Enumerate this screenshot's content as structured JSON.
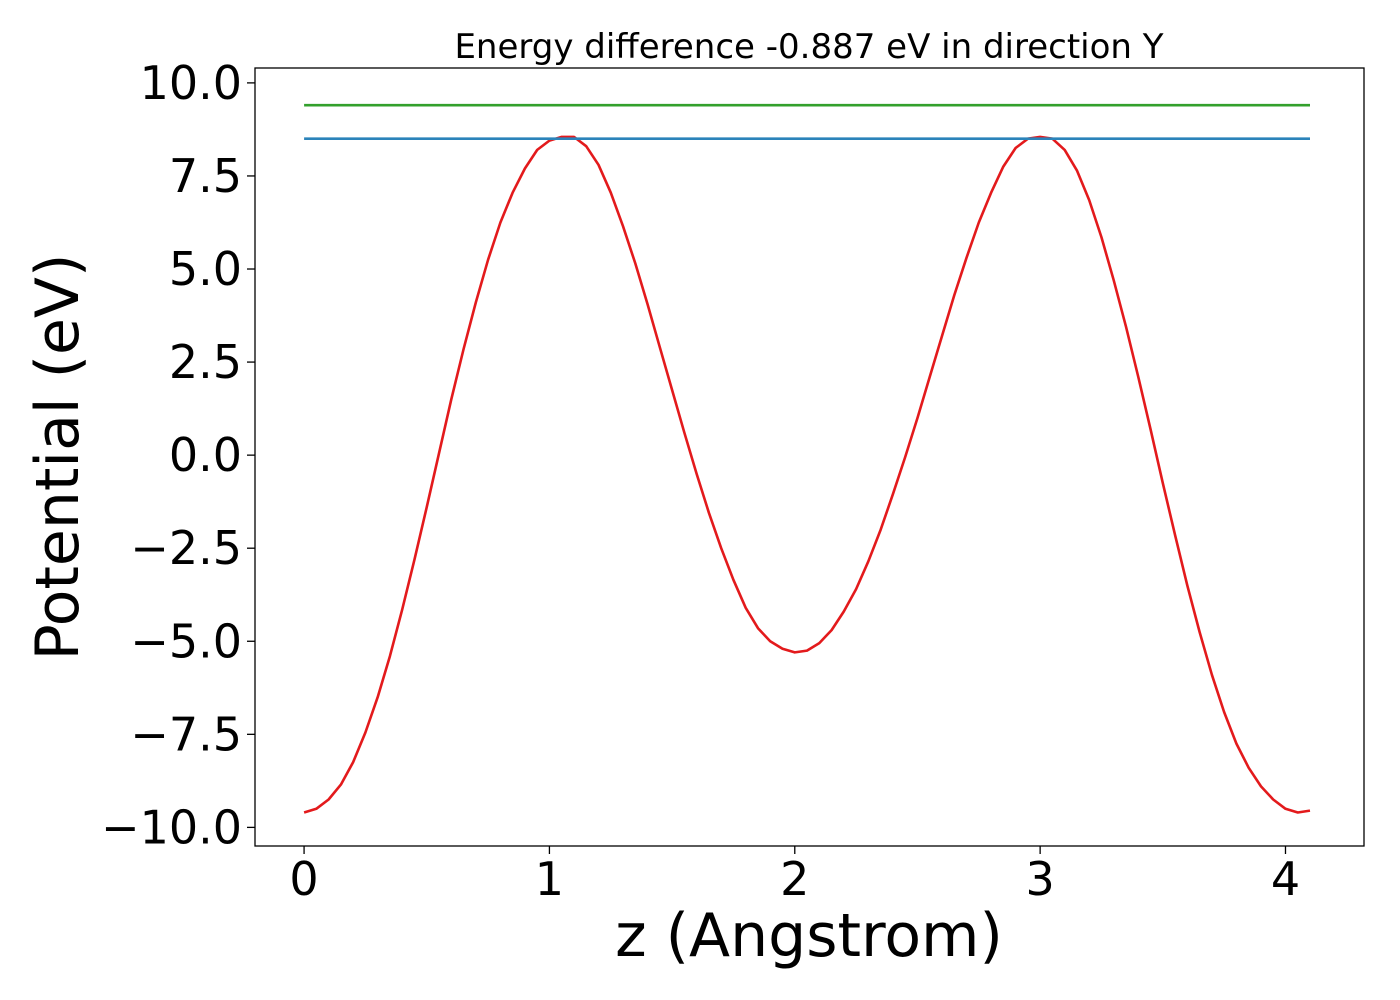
{
  "chart_data": {
    "type": "line",
    "title": "Energy difference -0.887 eV in direction Y",
    "xlabel": "z (Angstrom)",
    "ylabel": "Potential (eV)",
    "xlim": [
      -0.2,
      4.32
    ],
    "ylim": [
      -10.5,
      10.4
    ],
    "xticks": [
      0,
      1,
      2,
      3,
      4
    ],
    "xtick_labels": [
      "0",
      "1",
      "2",
      "3",
      "4"
    ],
    "yticks": [
      10,
      7.5,
      5,
      2.5,
      0,
      -2.5,
      -5,
      -7.5,
      -10
    ],
    "ytick_labels": [
      "10.0",
      "7.5",
      "5.0",
      "2.5",
      "0.0",
      "−2.5",
      "−5.0",
      "−7.5",
      "−10.0"
    ],
    "grid": false,
    "series": [
      {
        "color": "#e31a1c",
        "x": [
          0.0,
          0.05,
          0.1,
          0.15,
          0.2,
          0.25,
          0.3,
          0.35,
          0.4,
          0.45,
          0.5,
          0.55,
          0.6,
          0.65,
          0.7,
          0.75,
          0.8,
          0.85,
          0.9,
          0.95,
          1.0,
          1.05,
          1.1,
          1.15,
          1.2,
          1.25,
          1.3,
          1.35,
          1.4,
          1.45,
          1.5,
          1.55,
          1.6,
          1.65,
          1.7,
          1.75,
          1.8,
          1.85,
          1.9,
          1.95,
          2.0,
          2.05,
          2.1,
          2.15,
          2.2,
          2.25,
          2.3,
          2.35,
          2.4,
          2.45,
          2.5,
          2.55,
          2.6,
          2.65,
          2.7,
          2.75,
          2.8,
          2.85,
          2.9,
          2.95,
          3.0,
          3.05,
          3.1,
          3.15,
          3.2,
          3.25,
          3.3,
          3.35,
          3.4,
          3.45,
          3.5,
          3.55,
          3.6,
          3.65,
          3.7,
          3.75,
          3.8,
          3.85,
          3.9,
          3.95,
          4.0,
          4.05,
          4.1
        ],
        "y": [
          -9.6,
          -9.5,
          -9.25,
          -8.85,
          -8.25,
          -7.45,
          -6.5,
          -5.4,
          -4.15,
          -2.8,
          -1.4,
          0.05,
          1.5,
          2.85,
          4.1,
          5.25,
          6.25,
          7.05,
          7.7,
          8.2,
          8.45,
          8.55,
          8.55,
          8.3,
          7.8,
          7.05,
          6.15,
          5.15,
          4.05,
          2.9,
          1.75,
          0.6,
          -0.5,
          -1.55,
          -2.5,
          -3.35,
          -4.1,
          -4.65,
          -5.0,
          -5.2,
          -5.3,
          -5.25,
          -5.05,
          -4.7,
          -4.2,
          -3.6,
          -2.85,
          -2.0,
          -1.05,
          -0.05,
          1.0,
          2.1,
          3.2,
          4.3,
          5.3,
          6.25,
          7.05,
          7.75,
          8.25,
          8.5,
          8.55,
          8.5,
          8.2,
          7.65,
          6.85,
          5.85,
          4.7,
          3.45,
          2.1,
          0.7,
          -0.75,
          -2.15,
          -3.5,
          -4.75,
          -5.9,
          -6.9,
          -7.75,
          -8.4,
          -8.9,
          -9.25,
          -9.5,
          -9.6,
          -9.55
        ]
      },
      {
        "color": "#2b83ba",
        "x": [
          0.0,
          4.1
        ],
        "y": [
          8.5,
          8.5
        ]
      },
      {
        "color": "#33a02c",
        "x": [
          0.0,
          4.1
        ],
        "y": [
          9.4,
          9.4
        ]
      }
    ]
  }
}
